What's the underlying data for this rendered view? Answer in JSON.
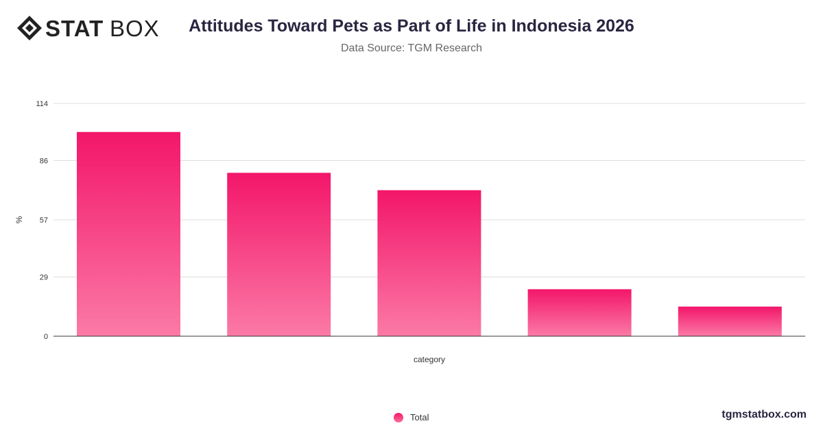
{
  "brand": {
    "logo_bold": "STAT",
    "logo_light": "BOX",
    "watermark": "tgmstatbox.com"
  },
  "colors": {
    "bar_top": "#f3166a",
    "bar_bottom": "#fb7aa6",
    "grid": "#dddddd",
    "axis": "#333333"
  },
  "chart_data": {
    "type": "bar",
    "title": "Attitudes Toward Pets as Part of Life in Indonesia 2026",
    "subtitle": "Data Source: TGM Research",
    "xlabel": "category",
    "ylabel": "%",
    "ylim": [
      0,
      114
    ],
    "yticks": [
      0,
      29,
      57,
      86,
      114
    ],
    "grid": true,
    "legend_position": "bottom",
    "categories": [
      "",
      "",
      "",
      "",
      ""
    ],
    "series": [
      {
        "name": "Total",
        "values": [
          100,
          80,
          71.5,
          23,
          14.5
        ]
      }
    ]
  }
}
